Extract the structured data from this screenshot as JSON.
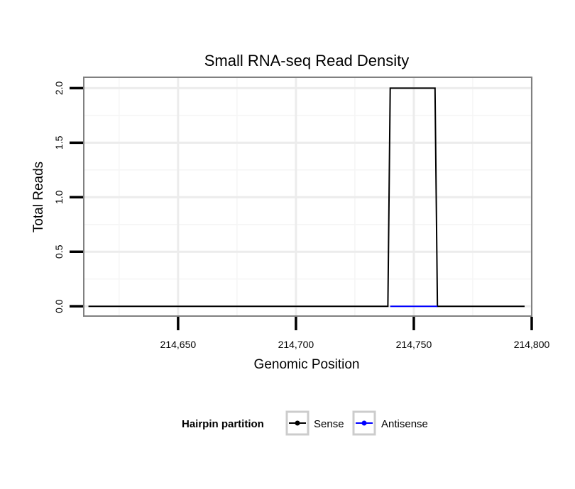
{
  "chart_data": {
    "type": "line",
    "title": "Small RNA-seq Read Density",
    "xlabel": "Genomic Position",
    "ylabel": "Total Reads",
    "xlim": [
      214610,
      214800
    ],
    "ylim": [
      -0.09,
      2.1
    ],
    "x_ticks": [
      214650,
      214700,
      214750,
      214800
    ],
    "x_tick_labels": [
      "214,650",
      "214,700",
      "214,750",
      "214,800"
    ],
    "y_ticks": [
      0.0,
      0.5,
      1.0,
      1.5,
      2.0
    ],
    "y_tick_labels": [
      "0.0",
      "0.5",
      "1.0",
      "1.5",
      "2.0"
    ],
    "x_minor_gridlines": [
      214625,
      214675,
      214725,
      214775
    ],
    "y_minor_gridlines": [
      0.25,
      0.75,
      1.25,
      1.75
    ],
    "grid": true,
    "legend": {
      "title": "Hairpin partition",
      "position": "bottom",
      "entries": [
        "Sense",
        "Antisense"
      ]
    },
    "series": [
      {
        "name": "Sense",
        "color": "#000000",
        "x": [
          214612,
          214739,
          214740,
          214759,
          214760,
          214797
        ],
        "y": [
          0,
          0,
          2,
          2,
          0,
          0
        ]
      },
      {
        "name": "Antisense",
        "color": "#0000ff",
        "x": [
          214740,
          214760
        ],
        "y": [
          0,
          0
        ]
      }
    ]
  }
}
